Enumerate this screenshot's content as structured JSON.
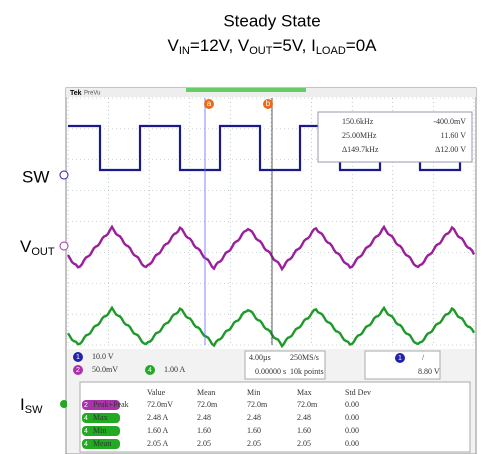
{
  "title": "Steady State",
  "subtitle": [
    "V",
    "IN",
    "=12V, V",
    "OUT",
    "=5V, I",
    "LOAD",
    "=0A"
  ],
  "traces": {
    "sw": "SW",
    "vout": [
      "V",
      "OUT"
    ],
    "isw": [
      "I",
      "SW"
    ]
  },
  "scope": {
    "brand": "Tek",
    "mode": "PreVu",
    "cursors": {
      "a": "a",
      "b": "b",
      "rows": [
        [
          "150.6kHz",
          "-400.0mV"
        ],
        [
          "25.00MHz",
          "11.60 V"
        ],
        [
          "Δ149.7kHz",
          "Δ12.00 V"
        ]
      ]
    },
    "channels": [
      {
        "num": "1",
        "scale": "10.0 V"
      },
      {
        "num": "2",
        "scale": "50.0mV"
      },
      {
        "num": "4",
        "scale": "1.00 A"
      }
    ],
    "timebase": {
      "scale": "4.00µs",
      "rate": "250MS/s",
      "delay": "0.00000 s",
      "points": "10k points"
    },
    "trigger": {
      "num": "1",
      "slope": "/",
      "level": "8.80 V"
    },
    "table": {
      "header": [
        "Value",
        "Mean",
        "Min",
        "Max",
        "Std Dev"
      ],
      "rows": [
        {
          "num": "2",
          "cells": [
            "Peak+Peak",
            "72.0mV",
            "72.0m",
            "72.0m",
            "72.0m",
            "0.00"
          ]
        },
        {
          "num": "4",
          "cells": [
            "Max",
            "2.48 A",
            "2.48",
            "2.48",
            "2.48",
            "0.00"
          ]
        },
        {
          "num": "4",
          "cells": [
            "Min",
            "1.60 A",
            "1.60",
            "1.60",
            "1.60",
            "0.00"
          ]
        },
        {
          "num": "4",
          "cells": [
            "Mean",
            "2.05 A",
            "2.05",
            "2.05",
            "2.05",
            "0.00"
          ]
        }
      ]
    }
  }
}
